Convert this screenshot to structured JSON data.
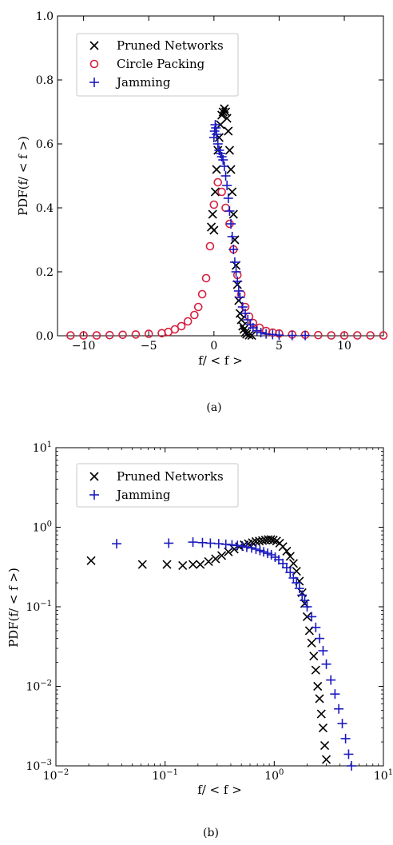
{
  "chart_data": [
    {
      "type": "scatter",
      "xlabel": "f/ < f >",
      "ylabel": "PDF(f/ < f >)",
      "xlim": [
        -12,
        13
      ],
      "ylim": [
        0,
        1.0
      ],
      "xscale": "linear",
      "yscale": "linear",
      "x_ticks": [
        -10,
        -5,
        0,
        5,
        10
      ],
      "x_tick_labels": [
        "−10",
        "−5",
        "0",
        "5",
        "10"
      ],
      "y_ticks": [
        0,
        0.2,
        0.4,
        0.6,
        0.8,
        1.0
      ],
      "y_tick_labels": [
        "0.0",
        "0.2",
        "0.4",
        "0.6",
        "0.8",
        "1.0"
      ],
      "grid": false,
      "legend_position": "top-left",
      "caption": "(a)",
      "series": [
        {
          "name": "Pruned Networks",
          "marker": "x",
          "color": "#000000",
          "points": [
            [
              -0.2,
              0.34
            ],
            [
              -0.1,
              0.38
            ],
            [
              0.0,
              0.33
            ],
            [
              0.1,
              0.45
            ],
            [
              0.2,
              0.52
            ],
            [
              0.3,
              0.58
            ],
            [
              0.4,
              0.62
            ],
            [
              0.5,
              0.66
            ],
            [
              0.6,
              0.69
            ],
            [
              0.7,
              0.7
            ],
            [
              0.8,
              0.71
            ],
            [
              0.9,
              0.7
            ],
            [
              1.0,
              0.68
            ],
            [
              1.1,
              0.64
            ],
            [
              1.2,
              0.58
            ],
            [
              1.3,
              0.52
            ],
            [
              1.4,
              0.45
            ],
            [
              1.5,
              0.38
            ],
            [
              1.6,
              0.3
            ],
            [
              1.7,
              0.22
            ],
            [
              1.8,
              0.16
            ],
            [
              1.9,
              0.11
            ],
            [
              2.0,
              0.07
            ],
            [
              2.1,
              0.05
            ],
            [
              2.2,
              0.03
            ],
            [
              2.3,
              0.02
            ],
            [
              2.4,
              0.01
            ],
            [
              2.5,
              0.005
            ],
            [
              2.7,
              0.002
            ],
            [
              2.9,
              0.001
            ]
          ]
        },
        {
          "name": "Circle Packing",
          "marker": "o",
          "color": "#d6203f",
          "points": [
            [
              -11,
              0.001
            ],
            [
              -10,
              0.001
            ],
            [
              -9,
              0.001
            ],
            [
              -8,
              0.002
            ],
            [
              -7,
              0.003
            ],
            [
              -6,
              0.004
            ],
            [
              -5,
              0.006
            ],
            [
              -4,
              0.008
            ],
            [
              -3.5,
              0.012
            ],
            [
              -3,
              0.02
            ],
            [
              -2.5,
              0.03
            ],
            [
              -2,
              0.045
            ],
            [
              -1.5,
              0.065
            ],
            [
              -1.2,
              0.09
            ],
            [
              -0.9,
              0.13
            ],
            [
              -0.6,
              0.18
            ],
            [
              -0.3,
              0.28
            ],
            [
              0.0,
              0.41
            ],
            [
              0.3,
              0.48
            ],
            [
              0.6,
              0.45
            ],
            [
              0.9,
              0.4
            ],
            [
              1.2,
              0.35
            ],
            [
              1.5,
              0.27
            ],
            [
              1.8,
              0.19
            ],
            [
              2.1,
              0.13
            ],
            [
              2.4,
              0.09
            ],
            [
              2.7,
              0.06
            ],
            [
              3.0,
              0.04
            ],
            [
              3.5,
              0.025
            ],
            [
              4.0,
              0.015
            ],
            [
              4.5,
              0.01
            ],
            [
              5,
              0.007
            ],
            [
              6,
              0.004
            ],
            [
              7,
              0.003
            ],
            [
              8,
              0.002
            ],
            [
              9,
              0.001
            ],
            [
              10,
              0.001
            ],
            [
              11,
              0.001
            ],
            [
              12,
              0.001
            ],
            [
              13,
              0.001
            ]
          ]
        },
        {
          "name": "Jamming",
          "marker": "+",
          "color": "#1a1abf",
          "points": [
            [
              0.0,
              0.62
            ],
            [
              0.05,
              0.64
            ],
            [
              0.1,
              0.66
            ],
            [
              0.15,
              0.65
            ],
            [
              0.2,
              0.63
            ],
            [
              0.3,
              0.6
            ],
            [
              0.4,
              0.58
            ],
            [
              0.5,
              0.57
            ],
            [
              0.6,
              0.56
            ],
            [
              0.7,
              0.55
            ],
            [
              0.8,
              0.53
            ],
            [
              0.9,
              0.5
            ],
            [
              1.0,
              0.47
            ],
            [
              1.1,
              0.43
            ],
            [
              1.2,
              0.39
            ],
            [
              1.3,
              0.35
            ],
            [
              1.4,
              0.31
            ],
            [
              1.5,
              0.27
            ],
            [
              1.6,
              0.23
            ],
            [
              1.7,
              0.2
            ],
            [
              1.8,
              0.17
            ],
            [
              1.9,
              0.14
            ],
            [
              2.0,
              0.12
            ],
            [
              2.2,
              0.09
            ],
            [
              2.4,
              0.07
            ],
            [
              2.6,
              0.05
            ],
            [
              2.8,
              0.035
            ],
            [
              3.0,
              0.025
            ],
            [
              3.3,
              0.016
            ],
            [
              3.6,
              0.01
            ],
            [
              4.0,
              0.006
            ],
            [
              4.5,
              0.004
            ],
            [
              5,
              0.002
            ],
            [
              6,
              0.001
            ],
            [
              7,
              0.001
            ]
          ]
        }
      ]
    },
    {
      "type": "scatter",
      "xlabel": "f/ < f >",
      "ylabel": "PDF(f/ < f >)",
      "xlim": [
        0.01,
        10
      ],
      "ylim": [
        0.001,
        10
      ],
      "xscale": "log",
      "yscale": "log",
      "x_ticks": [
        0.01,
        0.1,
        1,
        10
      ],
      "x_tick_labels": [
        [
          "10",
          "−2"
        ],
        [
          "10",
          "−1"
        ],
        [
          "10",
          "0"
        ],
        [
          "10",
          "1"
        ]
      ],
      "y_ticks": [
        0.001,
        0.01,
        0.1,
        1,
        10
      ],
      "y_tick_labels": [
        [
          "10",
          "−3"
        ],
        [
          "10",
          "−2"
        ],
        [
          "10",
          "−1"
        ],
        [
          "10",
          "0"
        ],
        [
          "10",
          "1"
        ]
      ],
      "grid": false,
      "legend_position": "top-left",
      "caption": "(b)",
      "series": [
        {
          "name": "Pruned Networks",
          "marker": "x",
          "color": "#000000",
          "points": [
            [
              0.021,
              0.38
            ],
            [
              0.062,
              0.34
            ],
            [
              0.104,
              0.34
            ],
            [
              0.145,
              0.33
            ],
            [
              0.18,
              0.34
            ],
            [
              0.21,
              0.34
            ],
            [
              0.25,
              0.37
            ],
            [
              0.29,
              0.4
            ],
            [
              0.33,
              0.44
            ],
            [
              0.38,
              0.49
            ],
            [
              0.43,
              0.53
            ],
            [
              0.48,
              0.57
            ],
            [
              0.53,
              0.6
            ],
            [
              0.58,
              0.62
            ],
            [
              0.63,
              0.64
            ],
            [
              0.68,
              0.66
            ],
            [
              0.73,
              0.67
            ],
            [
              0.78,
              0.68
            ],
            [
              0.83,
              0.69
            ],
            [
              0.88,
              0.7
            ],
            [
              0.93,
              0.7
            ],
            [
              0.98,
              0.69
            ],
            [
              1.05,
              0.67
            ],
            [
              1.12,
              0.63
            ],
            [
              1.2,
              0.57
            ],
            [
              1.3,
              0.5
            ],
            [
              1.4,
              0.43
            ],
            [
              1.5,
              0.35
            ],
            [
              1.6,
              0.28
            ],
            [
              1.7,
              0.21
            ],
            [
              1.8,
              0.15
            ],
            [
              1.9,
              0.11
            ],
            [
              2.0,
              0.075
            ],
            [
              2.1,
              0.05
            ],
            [
              2.2,
              0.035
            ],
            [
              2.3,
              0.024
            ],
            [
              2.4,
              0.016
            ],
            [
              2.5,
              0.01
            ],
            [
              2.6,
              0.007
            ],
            [
              2.7,
              0.0045
            ],
            [
              2.8,
              0.003
            ],
            [
              2.9,
              0.0018
            ],
            [
              3.0,
              0.0012
            ]
          ]
        },
        {
          "name": "Jamming",
          "marker": "+",
          "color": "#1a1abf",
          "points": [
            [
              0.036,
              0.62
            ],
            [
              0.108,
              0.63
            ],
            [
              0.18,
              0.65
            ],
            [
              0.22,
              0.64
            ],
            [
              0.26,
              0.63
            ],
            [
              0.31,
              0.62
            ],
            [
              0.36,
              0.61
            ],
            [
              0.41,
              0.6
            ],
            [
              0.46,
              0.59
            ],
            [
              0.51,
              0.58
            ],
            [
              0.56,
              0.56
            ],
            [
              0.62,
              0.55
            ],
            [
              0.68,
              0.53
            ],
            [
              0.74,
              0.51
            ],
            [
              0.8,
              0.49
            ],
            [
              0.87,
              0.47
            ],
            [
              0.94,
              0.45
            ],
            [
              1.02,
              0.42
            ],
            [
              1.1,
              0.39
            ],
            [
              1.2,
              0.35
            ],
            [
              1.3,
              0.31
            ],
            [
              1.4,
              0.27
            ],
            [
              1.5,
              0.23
            ],
            [
              1.6,
              0.2
            ],
            [
              1.7,
              0.17
            ],
            [
              1.8,
              0.14
            ],
            [
              1.9,
              0.12
            ],
            [
              2.0,
              0.1
            ],
            [
              2.2,
              0.075
            ],
            [
              2.4,
              0.055
            ],
            [
              2.6,
              0.04
            ],
            [
              2.8,
              0.028
            ],
            [
              3.0,
              0.019
            ],
            [
              3.3,
              0.012
            ],
            [
              3.6,
              0.008
            ],
            [
              3.9,
              0.0052
            ],
            [
              4.2,
              0.0034
            ],
            [
              4.5,
              0.0022
            ],
            [
              4.8,
              0.0014
            ],
            [
              5.1,
              0.001
            ]
          ]
        }
      ]
    }
  ]
}
